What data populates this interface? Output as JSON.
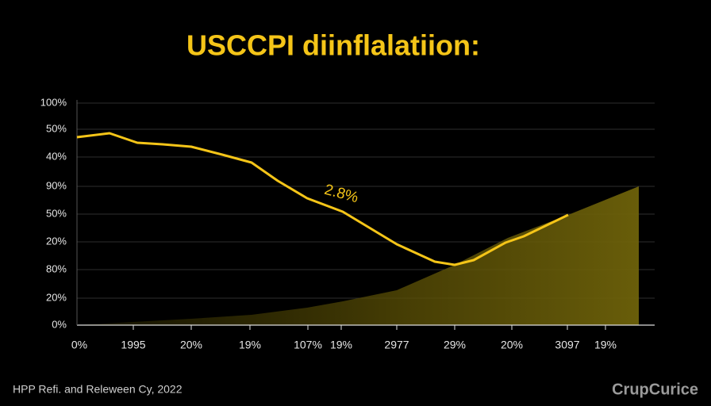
{
  "title": "USCCPI diinflalatiion:",
  "y_axis_labels": [
    "100%",
    "50%",
    "40%",
    "90%",
    "50%",
    "20%",
    "80%",
    "20%",
    "0%"
  ],
  "x_axis_labels": [
    "0%",
    "1995",
    "20%",
    "19%",
    "107%",
    "19%",
    "2977",
    "29%",
    "20%",
    "3097",
    "19%"
  ],
  "annotation": "2.8%",
  "footer": {
    "source": "HPP Refi. and Releween Cy, 2022",
    "brand": "CrupCurice"
  }
}
